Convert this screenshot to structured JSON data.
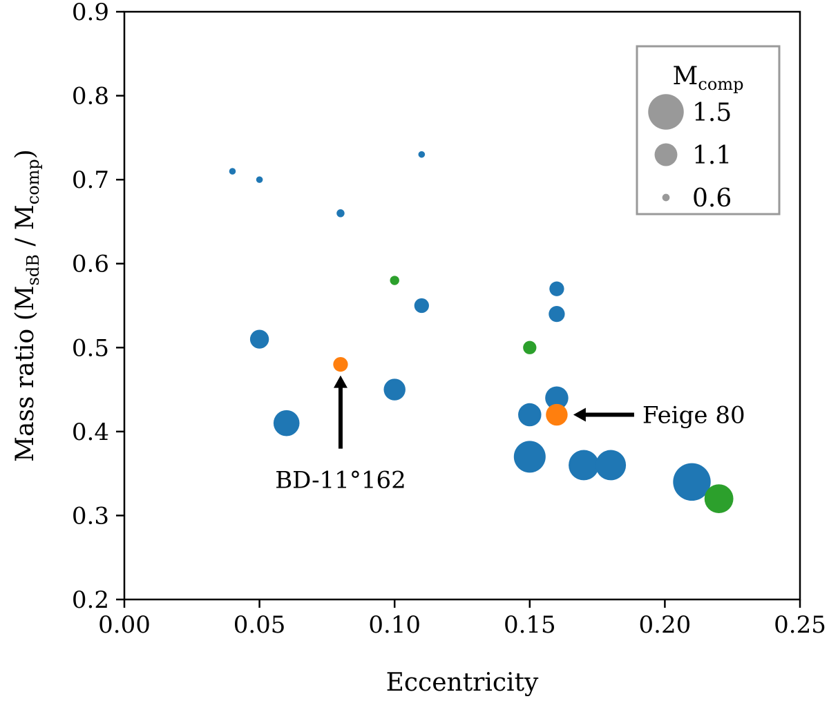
{
  "chart_data": {
    "type": "scatter",
    "xlabel": "Eccentricity",
    "ylabel": {
      "prefix": "Mass ratio (M",
      "sub1": "sdB",
      "mid": " / M",
      "sub2": "comp",
      "suffix": ")"
    },
    "xlim": [
      0.0,
      0.25
    ],
    "ylim": [
      0.2,
      0.9
    ],
    "xticks": [
      "0.00",
      "0.05",
      "0.10",
      "0.15",
      "0.20",
      "0.25"
    ],
    "yticks": [
      "0.2",
      "0.3",
      "0.4",
      "0.5",
      "0.6",
      "0.7",
      "0.8",
      "0.9"
    ],
    "colors": {
      "blue": "#1f77b4",
      "orange": "#ff7f0e",
      "green": "#2ca02c",
      "legend": "#999999",
      "axis": "#000000"
    },
    "points": [
      {
        "x": 0.04,
        "y": 0.71,
        "m": 0.6,
        "c": "blue"
      },
      {
        "x": 0.05,
        "y": 0.7,
        "m": 0.6,
        "c": "blue"
      },
      {
        "x": 0.11,
        "y": 0.73,
        "m": 0.6,
        "c": "blue"
      },
      {
        "x": 0.08,
        "y": 0.66,
        "m": 0.65,
        "c": "blue"
      },
      {
        "x": 0.1,
        "y": 0.58,
        "m": 0.7,
        "c": "green"
      },
      {
        "x": 0.11,
        "y": 0.55,
        "m": 0.9,
        "c": "blue"
      },
      {
        "x": 0.16,
        "y": 0.57,
        "m": 0.9,
        "c": "blue"
      },
      {
        "x": 0.16,
        "y": 0.54,
        "m": 0.95,
        "c": "blue"
      },
      {
        "x": 0.05,
        "y": 0.51,
        "m": 1.05,
        "c": "blue"
      },
      {
        "x": 0.15,
        "y": 0.5,
        "m": 0.85,
        "c": "green"
      },
      {
        "x": 0.08,
        "y": 0.48,
        "m": 0.9,
        "c": "orange"
      },
      {
        "x": 0.1,
        "y": 0.45,
        "m": 1.15,
        "c": "blue"
      },
      {
        "x": 0.16,
        "y": 0.44,
        "m": 1.2,
        "c": "blue"
      },
      {
        "x": 0.15,
        "y": 0.42,
        "m": 1.2,
        "c": "blue"
      },
      {
        "x": 0.16,
        "y": 0.42,
        "m": 1.15,
        "c": "orange"
      },
      {
        "x": 0.06,
        "y": 0.41,
        "m": 1.3,
        "c": "blue"
      },
      {
        "x": 0.15,
        "y": 0.37,
        "m": 1.5,
        "c": "blue"
      },
      {
        "x": 0.17,
        "y": 0.36,
        "m": 1.45,
        "c": "blue"
      },
      {
        "x": 0.18,
        "y": 0.36,
        "m": 1.45,
        "c": "blue"
      },
      {
        "x": 0.21,
        "y": 0.34,
        "m": 1.7,
        "c": "blue"
      },
      {
        "x": 0.22,
        "y": 0.32,
        "m": 1.4,
        "c": "green"
      }
    ],
    "annotations": [
      {
        "name": "annotation-bd-11-162",
        "text": "BD-11°162",
        "target": [
          0.08,
          0.48
        ],
        "direction": "up"
      },
      {
        "name": "annotation-feige-80",
        "text": "Feige 80",
        "target": [
          0.16,
          0.42
        ],
        "direction": "left"
      }
    ],
    "legend": {
      "title_main": "M",
      "title_sub": "comp",
      "location": "top-right",
      "entries": [
        {
          "label": "1.5",
          "m": 1.5
        },
        {
          "label": "1.1",
          "m": 1.1
        },
        {
          "label": "0.6",
          "m": 0.6
        }
      ]
    }
  }
}
